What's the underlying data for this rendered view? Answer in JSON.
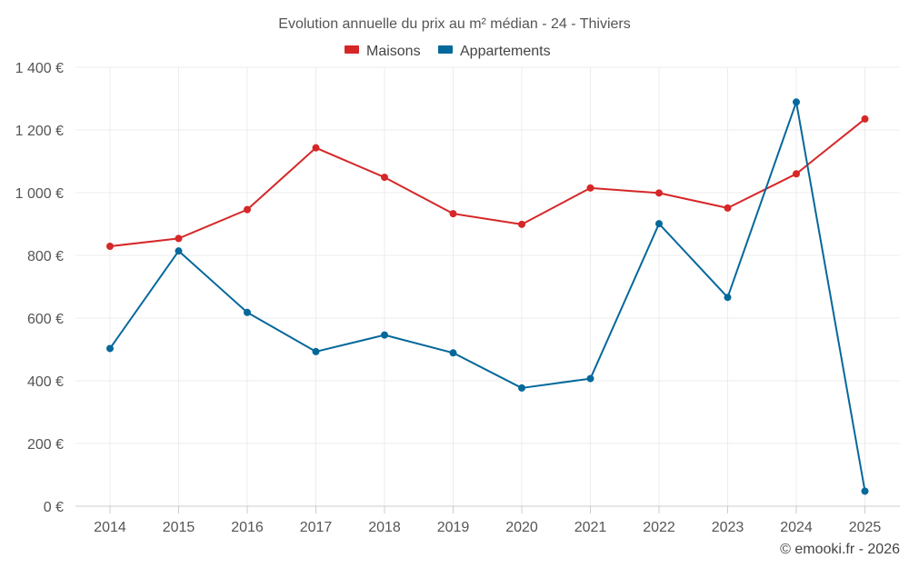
{
  "chart_data": {
    "type": "line",
    "title": "Evolution annuelle du prix au m² médian - 24 - Thiviers",
    "xlabel": "",
    "ylabel": "",
    "categories": [
      "2014",
      "2015",
      "2016",
      "2017",
      "2018",
      "2019",
      "2020",
      "2021",
      "2022",
      "2023",
      "2024",
      "2025"
    ],
    "ylim": [
      0,
      1400
    ],
    "yticks": [
      0,
      200,
      400,
      600,
      800,
      1000,
      1200,
      1400
    ],
    "ytick_labels": [
      "0 €",
      "200 €",
      "400 €",
      "600 €",
      "800 €",
      "1 000 €",
      "1 200 €",
      "1 400 €"
    ],
    "grid": true,
    "legend_position": "top-center",
    "series": [
      {
        "name": "Maisons",
        "color": "#d62728",
        "values": [
          829,
          854,
          946,
          1143,
          1049,
          933,
          899,
          1015,
          999,
          951,
          1060,
          1235
        ]
      },
      {
        "name": "Appartements",
        "color": "#05689b",
        "values": [
          503,
          814,
          618,
          493,
          546,
          489,
          377,
          407,
          901,
          666,
          1289,
          48
        ]
      }
    ]
  },
  "credit": "© emooki.fr - 2026"
}
